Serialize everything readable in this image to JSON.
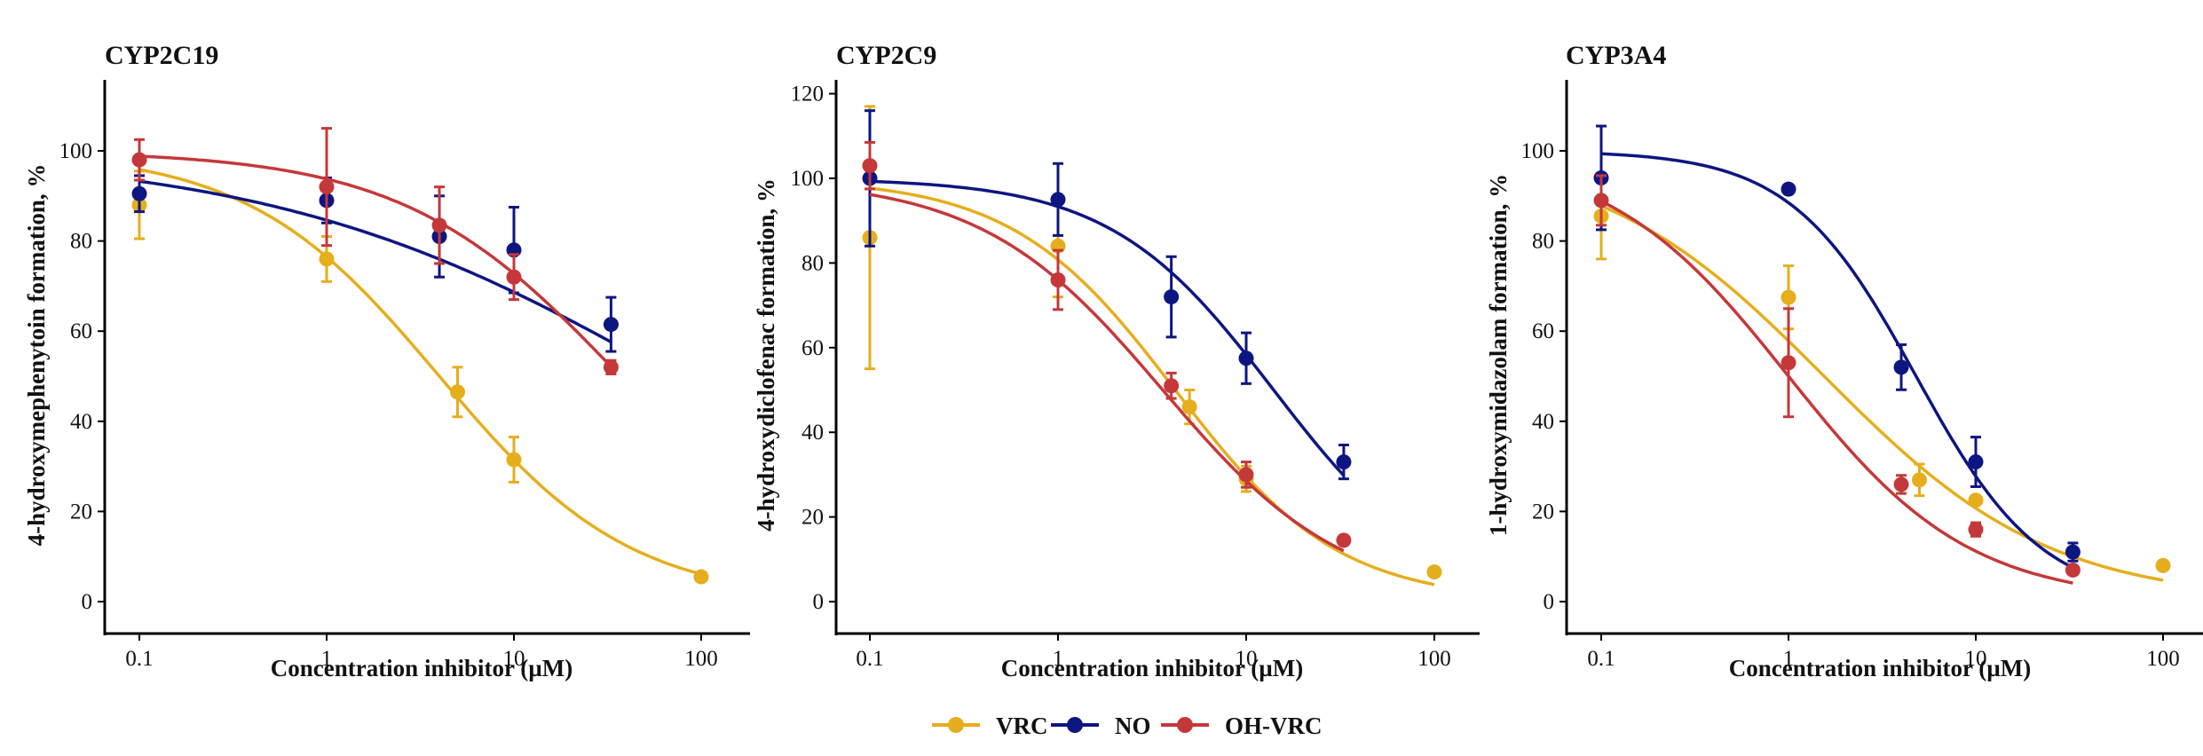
{
  "colors": {
    "VRC": "#E6AE1D",
    "NO": "#0D1680",
    "OH-VRC": "#C5383A"
  },
  "legend": {
    "placement": "bottom-center",
    "items": [
      "VRC",
      "NO",
      "OH-VRC"
    ]
  },
  "chart_data": [
    {
      "type": "scatter",
      "title": "CYP2C19",
      "xlabel": "Concentration inhibitor (µM)",
      "ylabel": "4-hydroxymephenytoin formation, %",
      "xscale": "log",
      "xlim": [
        0.07,
        140
      ],
      "ylim": [
        -5,
        115
      ],
      "x_ticks": [
        0.1,
        1,
        10,
        100
      ],
      "x_tick_labels": [
        "0.1",
        "1",
        "10",
        "100"
      ],
      "y_ticks": [
        0,
        20,
        40,
        60,
        80,
        100
      ],
      "y_tick_labels": [
        "0",
        "20",
        "40",
        "60",
        "80",
        "100"
      ],
      "series": [
        {
          "name": "VRC",
          "points": [
            {
              "x": 0.1,
              "y": 88,
              "err": 7.5
            },
            {
              "x": 1,
              "y": 76,
              "err": 5
            },
            {
              "x": 5,
              "y": 46.5,
              "err": 5.5
            },
            {
              "x": 10,
              "y": 31.5,
              "err": 5
            },
            {
              "x": 100,
              "y": 5.5,
              "err": 0
            }
          ],
          "fit": {
            "top": 100,
            "bottom": 0,
            "ic50": 4.0,
            "hill": 0.85
          }
        },
        {
          "name": "NO",
          "points": [
            {
              "x": 0.1,
              "y": 90.5,
              "err": 4
            },
            {
              "x": 1,
              "y": 89,
              "err": 5
            },
            {
              "x": 4,
              "y": 81,
              "err": 9
            },
            {
              "x": 10,
              "y": 78,
              "err": 9.5
            },
            {
              "x": 33,
              "y": 61.5,
              "err": 6
            }
          ],
          "fit": {
            "top": 100,
            "bottom": 0,
            "ic50": 71,
            "hill": 0.4
          }
        },
        {
          "name": "OH-VRC",
          "points": [
            {
              "x": 0.1,
              "y": 98,
              "err": 4.5
            },
            {
              "x": 1,
              "y": 92,
              "err": 13
            },
            {
              "x": 4,
              "y": 83.5,
              "err": 8.5
            },
            {
              "x": 10,
              "y": 72,
              "err": 5
            },
            {
              "x": 33,
              "y": 52,
              "err": 1.5
            }
          ],
          "fit": {
            "top": 100,
            "bottom": 0,
            "ic50": 37,
            "hill": 0.75
          }
        }
      ]
    },
    {
      "type": "scatter",
      "title": "CYP2C9",
      "xlabel": "Concentration inhibitor (µM)",
      "ylabel": "4-hydroxydiclofenac formation, %",
      "xscale": "log",
      "xlim": [
        0.07,
        140
      ],
      "ylim": [
        -5,
        130
      ],
      "x_ticks": [
        0.1,
        1,
        10,
        100
      ],
      "x_tick_labels": [
        "0.1",
        "1",
        "10",
        "100"
      ],
      "y_ticks": [
        0,
        20,
        40,
        60,
        80,
        100,
        120
      ],
      "y_tick_labels": [
        "0",
        "20",
        "40",
        "60",
        "80",
        "100",
        "120"
      ],
      "series": [
        {
          "name": "VRC",
          "points": [
            {
              "x": 0.1,
              "y": 86,
              "err": 31
            },
            {
              "x": 1,
              "y": 84,
              "err": 12
            },
            {
              "x": 5,
              "y": 46,
              "err": 4
            },
            {
              "x": 10,
              "y": 29,
              "err": 3
            },
            {
              "x": 100,
              "y": 7,
              "err": 0
            }
          ],
          "fit": {
            "top": 100,
            "bottom": 0,
            "ic50": 4.2,
            "hill": 1.0
          }
        },
        {
          "name": "NO",
          "points": [
            {
              "x": 0.1,
              "y": 100,
              "err": 16
            },
            {
              "x": 1,
              "y": 95,
              "err": 8.5
            },
            {
              "x": 4,
              "y": 72,
              "err": 9.5
            },
            {
              "x": 10,
              "y": 57.5,
              "err": 6
            },
            {
              "x": 33,
              "y": 33,
              "err": 4
            }
          ],
          "fit": {
            "top": 100,
            "bottom": 0,
            "ic50": 14,
            "hill": 1.0
          }
        },
        {
          "name": "OH-VRC",
          "points": [
            {
              "x": 0.1,
              "y": 103,
              "err": 5.5
            },
            {
              "x": 1,
              "y": 76,
              "err": 7
            },
            {
              "x": 4,
              "y": 51,
              "err": 3
            },
            {
              "x": 10,
              "y": 30,
              "err": 3
            },
            {
              "x": 33,
              "y": 14.5,
              "err": 1
            }
          ],
          "fit": {
            "top": 100,
            "bottom": 0,
            "ic50": 3.6,
            "hill": 0.9
          }
        }
      ]
    },
    {
      "type": "scatter",
      "title": "CYP3A4",
      "xlabel": "Concentration inhibitor (µM)",
      "ylabel": "1-hydroxymidazolam formation, %",
      "xscale": "log",
      "xlim": [
        0.07,
        140
      ],
      "ylim": [
        -5,
        115
      ],
      "x_ticks": [
        0.1,
        1,
        10,
        100
      ],
      "x_tick_labels": [
        "0.1",
        "1",
        "10",
        "100"
      ],
      "y_ticks": [
        0,
        20,
        40,
        60,
        80,
        100
      ],
      "y_tick_labels": [
        "0",
        "20",
        "40",
        "60",
        "80",
        "100"
      ],
      "series": [
        {
          "name": "VRC",
          "points": [
            {
              "x": 0.1,
              "y": 85.5,
              "err": 9.5
            },
            {
              "x": 1,
              "y": 67.5,
              "err": 7
            },
            {
              "x": 5,
              "y": 27,
              "err": 3.5
            },
            {
              "x": 10,
              "y": 22.5,
              "err": 0
            },
            {
              "x": 100,
              "y": 8,
              "err": 0
            }
          ],
          "fit": {
            "top": 100,
            "bottom": 0,
            "ic50": 1.55,
            "hill": 0.72
          }
        },
        {
          "name": "NO",
          "points": [
            {
              "x": 0.1,
              "y": 94,
              "err": 11.5
            },
            {
              "x": 1,
              "y": 91.5,
              "err": 0
            },
            {
              "x": 4,
              "y": 52,
              "err": 5
            },
            {
              "x": 10,
              "y": 31,
              "err": 5.5
            },
            {
              "x": 33,
              "y": 11,
              "err": 2
            }
          ],
          "fit": {
            "top": 100,
            "bottom": 0,
            "ic50": 4.8,
            "hill": 1.3
          }
        },
        {
          "name": "OH-VRC",
          "points": [
            {
              "x": 0.1,
              "y": 89,
              "err": 5.5
            },
            {
              "x": 1,
              "y": 53,
              "err": 12
            },
            {
              "x": 4,
              "y": 26,
              "err": 2
            },
            {
              "x": 10,
              "y": 16,
              "err": 1.5
            },
            {
              "x": 33,
              "y": 7,
              "err": 0
            }
          ],
          "fit": {
            "top": 100,
            "bottom": 0,
            "ic50": 1.0,
            "hill": 0.9
          }
        }
      ]
    }
  ]
}
